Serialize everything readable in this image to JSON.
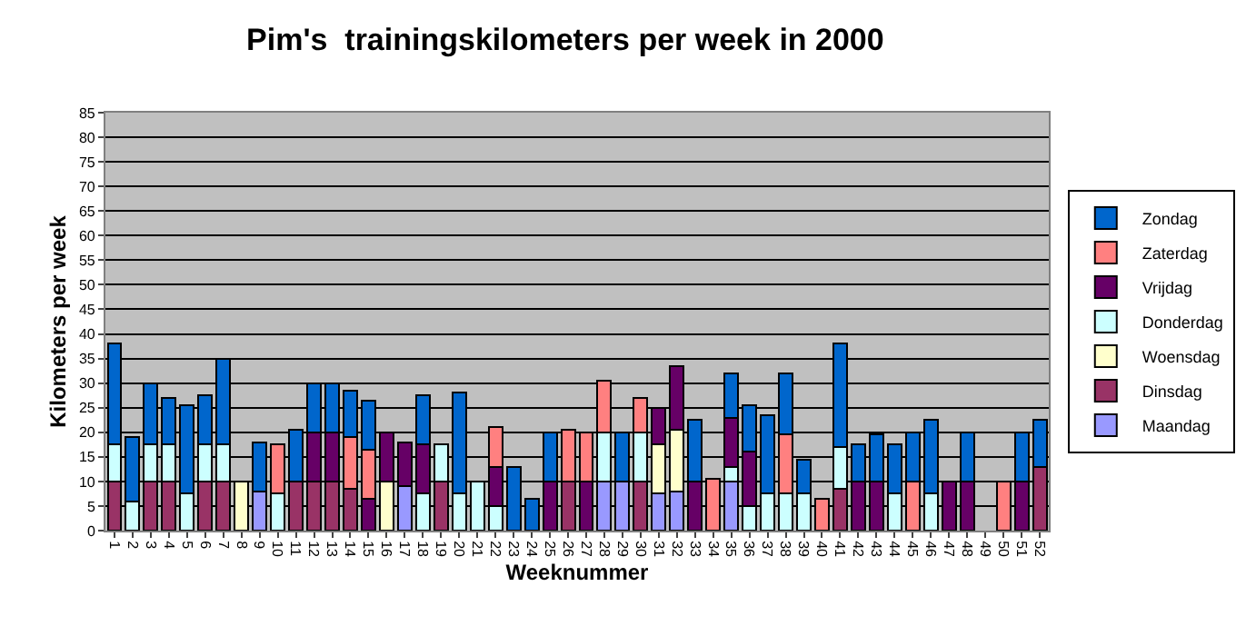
{
  "chart_data": {
    "type": "bar",
    "stacked": true,
    "title": "Pim's  trainingskilometers per week in 2000",
    "xlabel": "Weeknummer",
    "ylabel": "Kilometers per week",
    "categories": [
      "1",
      "2",
      "3",
      "4",
      "5",
      "6",
      "7",
      "8",
      "9",
      "10",
      "11",
      "12",
      "13",
      "14",
      "15",
      "16",
      "17",
      "18",
      "19",
      "20",
      "21",
      "22",
      "23",
      "24",
      "25",
      "26",
      "27",
      "28",
      "29",
      "30",
      "31",
      "32",
      "33",
      "34",
      "35",
      "36",
      "37",
      "38",
      "39",
      "40",
      "41",
      "42",
      "43",
      "44",
      "45",
      "46",
      "47",
      "48",
      "49",
      "50",
      "51",
      "52"
    ],
    "series": [
      {
        "name": "Maandag",
        "color": "#9999ff",
        "values": [
          null,
          null,
          null,
          null,
          null,
          null,
          null,
          null,
          8,
          null,
          null,
          null,
          null,
          null,
          null,
          null,
          9,
          null,
          null,
          null,
          null,
          null,
          null,
          null,
          null,
          null,
          null,
          10,
          10,
          null,
          7.5,
          8,
          null,
          null,
          10,
          null,
          null,
          null,
          null,
          null,
          null,
          null,
          null,
          null,
          null,
          null,
          null,
          null,
          null,
          null,
          null,
          null
        ]
      },
      {
        "name": "Dinsdag",
        "color": "#993366",
        "values": [
          10,
          null,
          10,
          10,
          null,
          10,
          10,
          null,
          null,
          null,
          10,
          10,
          10,
          8.5,
          null,
          null,
          null,
          null,
          10,
          null,
          null,
          null,
          null,
          null,
          null,
          10,
          null,
          null,
          null,
          10,
          null,
          null,
          null,
          null,
          null,
          null,
          null,
          null,
          null,
          null,
          8.5,
          null,
          null,
          null,
          null,
          null,
          null,
          null,
          null,
          null,
          null,
          13
        ]
      },
      {
        "name": "Woensdag",
        "color": "#ffffcc",
        "values": [
          null,
          null,
          null,
          null,
          null,
          null,
          null,
          10,
          null,
          null,
          null,
          null,
          null,
          null,
          null,
          10,
          null,
          null,
          null,
          null,
          null,
          null,
          null,
          null,
          null,
          null,
          null,
          null,
          null,
          null,
          10,
          12.5,
          null,
          null,
          null,
          null,
          null,
          null,
          null,
          null,
          null,
          null,
          null,
          null,
          null,
          null,
          null,
          null,
          null,
          null,
          null,
          null
        ]
      },
      {
        "name": "Donderdag",
        "color": "#ccffff",
        "values": [
          7.5,
          6,
          7.5,
          7.5,
          7.5,
          7.5,
          7.5,
          null,
          null,
          7.5,
          null,
          null,
          null,
          null,
          null,
          null,
          null,
          7.5,
          7.5,
          7.5,
          10,
          5,
          null,
          null,
          null,
          null,
          null,
          10,
          null,
          10,
          null,
          null,
          null,
          null,
          3,
          5,
          7.5,
          7.5,
          7.5,
          null,
          8.5,
          null,
          null,
          7.5,
          null,
          7.5,
          null,
          null,
          null,
          null,
          null,
          null
        ]
      },
      {
        "name": "Vrijdag",
        "color": "#660066",
        "values": [
          null,
          null,
          null,
          null,
          null,
          null,
          null,
          null,
          null,
          null,
          null,
          10,
          10,
          null,
          6.5,
          10,
          9,
          10,
          null,
          null,
          null,
          8,
          null,
          null,
          10,
          null,
          10,
          null,
          null,
          null,
          7.5,
          13,
          10,
          null,
          10,
          11,
          null,
          null,
          null,
          null,
          null,
          10,
          10,
          null,
          null,
          null,
          10,
          10,
          null,
          null,
          10,
          null
        ]
      },
      {
        "name": "Zaterdag",
        "color": "#ff8080",
        "values": [
          null,
          null,
          null,
          null,
          null,
          null,
          null,
          null,
          null,
          10,
          null,
          null,
          null,
          10.5,
          10,
          null,
          null,
          null,
          null,
          null,
          null,
          8,
          null,
          null,
          null,
          10.5,
          10,
          10.5,
          null,
          7,
          null,
          null,
          null,
          10.5,
          null,
          null,
          null,
          12,
          null,
          6.5,
          null,
          null,
          null,
          null,
          10,
          null,
          null,
          null,
          null,
          10,
          null,
          null
        ]
      },
      {
        "name": "Zondag",
        "color": "#0066cc",
        "values": [
          20.5,
          13,
          12.5,
          9.5,
          18,
          10,
          17.5,
          null,
          10,
          null,
          10.5,
          10,
          10,
          9.5,
          10,
          null,
          null,
          10,
          null,
          20.5,
          null,
          null,
          13,
          6.5,
          10,
          null,
          null,
          null,
          10,
          null,
          null,
          null,
          12.5,
          null,
          9,
          9.5,
          16,
          12.5,
          7,
          null,
          21,
          7.5,
          9.5,
          10,
          10,
          15,
          null,
          10,
          null,
          null,
          10,
          9.5
        ]
      }
    ],
    "ylim": [
      0,
      85
    ],
    "yticks": [
      0,
      5,
      10,
      15,
      20,
      25,
      30,
      35,
      40,
      45,
      50,
      55,
      60,
      65,
      70,
      75,
      80,
      85
    ],
    "grid": "y",
    "legend": "right"
  }
}
